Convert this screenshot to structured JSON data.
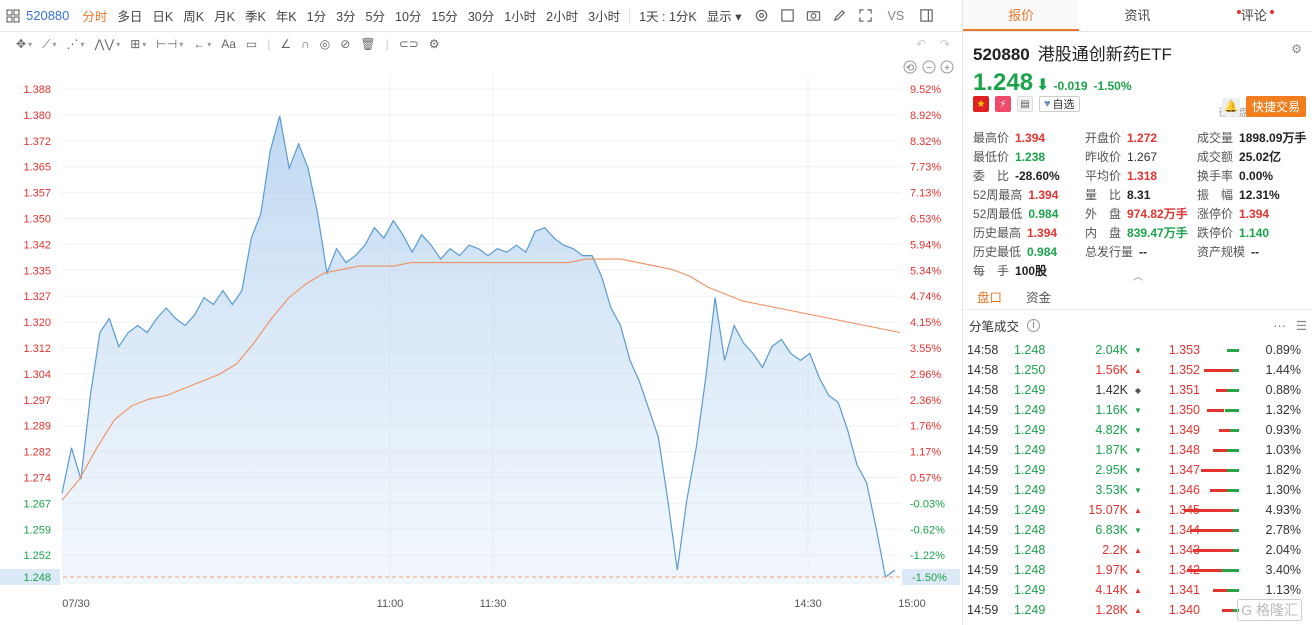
{
  "toolbar": {
    "code": "520880",
    "periods": [
      "分时",
      "多日",
      "日K",
      "周K",
      "月K",
      "季K",
      "年K",
      "1分",
      "3分",
      "5分",
      "10分",
      "15分",
      "30分",
      "1小时",
      "2小时",
      "3小时"
    ],
    "active_period": "分时",
    "day_select": "1天",
    "minute_select": "1分K",
    "display_label": "显示",
    "vs_label": "VS"
  },
  "drawbar": {
    "text_tool": "Aa"
  },
  "chart_data": {
    "type": "line",
    "price_ticks": [
      "1.388",
      "1.380",
      "1.372",
      "1.365",
      "1.357",
      "1.350",
      "1.342",
      "1.335",
      "1.327",
      "1.320",
      "1.312",
      "1.304",
      "1.297",
      "1.289",
      "1.282",
      "1.274",
      "1.267",
      "1.259",
      "1.252"
    ],
    "pct_ticks": [
      "9.52%",
      "8.92%",
      "8.32%",
      "7.73%",
      "7.13%",
      "6.53%",
      "5.94%",
      "5.34%",
      "4.74%",
      "4.15%",
      "3.55%",
      "2.96%",
      "2.36%",
      "1.76%",
      "1.17%",
      "0.57%",
      "-0.03%",
      "-0.62%",
      "-1.22%"
    ],
    "x_labels": [
      "07/30",
      "11:00",
      "11:30",
      "14:30",
      "15:00"
    ],
    "current_price_label": "1.248",
    "current_pct_label": "-1.50%",
    "prev_close": 1.267,
    "ylim": [
      1.246,
      1.392
    ],
    "series": [
      {
        "kind": "price",
        "color": "#5b9bd5",
        "values": [
          1.272,
          1.285,
          1.276,
          1.3,
          1.318,
          1.322,
          1.314,
          1.318,
          1.32,
          1.318,
          1.322,
          1.325,
          1.322,
          1.32,
          1.323,
          1.328,
          1.326,
          1.33,
          1.326,
          1.33,
          1.345,
          1.352,
          1.37,
          1.38,
          1.365,
          1.372,
          1.365,
          1.352,
          1.335,
          1.342,
          1.338,
          1.34,
          1.343,
          1.348,
          1.345,
          1.35,
          1.346,
          1.341,
          1.346,
          1.343,
          1.339,
          1.342,
          1.34,
          1.343,
          1.342,
          1.34,
          1.342,
          1.341,
          1.343,
          1.341,
          1.347,
          1.348,
          1.345,
          1.343,
          1.342,
          1.34,
          1.34,
          1.334,
          1.325,
          1.32,
          1.31,
          1.304,
          1.296,
          1.288,
          1.27,
          1.25,
          1.27,
          1.285,
          1.305,
          1.328,
          1.31,
          1.32,
          1.315,
          1.312,
          1.308,
          1.314,
          1.316,
          1.312,
          1.31,
          1.312,
          1.305,
          1.3,
          1.298,
          1.29,
          1.28,
          1.275,
          1.262,
          1.248,
          1.25
        ]
      },
      {
        "kind": "average",
        "color": "#f09060",
        "values": [
          1.27,
          1.276,
          1.285,
          1.293,
          1.297,
          1.299,
          1.3,
          1.302,
          1.304,
          1.306,
          1.309,
          1.315,
          1.322,
          1.328,
          1.332,
          1.335,
          1.336,
          1.337,
          1.337,
          1.337,
          1.338,
          1.338,
          1.338,
          1.338,
          1.338,
          1.338,
          1.338,
          1.338,
          1.338,
          1.338,
          1.339,
          1.339,
          1.339,
          1.338,
          1.337,
          1.336,
          1.334,
          1.331,
          1.329,
          1.327,
          1.326,
          1.325,
          1.324,
          1.323,
          1.322,
          1.321,
          1.32,
          1.319,
          1.318
        ]
      }
    ]
  },
  "tabs": {
    "quote": "报价",
    "news": "资讯",
    "comments": "评论"
  },
  "stock": {
    "code": "520880",
    "name": "港股通创新药ETF",
    "price": "1.248",
    "change": "-0.019",
    "change_pct": "-1.50%",
    "status": "已收盘 07/30 14:59",
    "fav_label": "自选",
    "trade_label": "快捷交易"
  },
  "stats": [
    [
      [
        "最高价",
        "1.394",
        "up"
      ],
      [
        "开盘价",
        "1.272",
        "up"
      ],
      [
        "成交量",
        "1898.09万手",
        "neutral"
      ]
    ],
    [
      [
        "最低价",
        "1.238",
        "down"
      ],
      [
        "昨收价",
        "1.267",
        "plain"
      ],
      [
        "成交额",
        "25.02亿",
        "neutral"
      ]
    ],
    [
      [
        "委　比",
        "-28.60%",
        "neutral"
      ],
      [
        "平均价",
        "1.318",
        "up"
      ],
      [
        "换手率",
        "0.00%",
        "neutral"
      ]
    ],
    [
      [
        "52周最高",
        "1.394",
        "up"
      ],
      [
        "量　比",
        "8.31",
        "neutral"
      ],
      [
        "振　幅",
        "12.31%",
        "neutral"
      ]
    ],
    [
      [
        "52周最低",
        "0.984",
        "down"
      ],
      [
        "外　盘",
        "974.82万手",
        "up"
      ],
      [
        "涨停价",
        "1.394",
        "up"
      ]
    ],
    [
      [
        "历史最高",
        "1.394",
        "up"
      ],
      [
        "内　盘",
        "839.47万手",
        "down"
      ],
      [
        "跌停价",
        "1.140",
        "down"
      ]
    ],
    [
      [
        "历史最低",
        "0.984",
        "down"
      ],
      [
        "总发行量",
        "--",
        "neutral"
      ],
      [
        "资产规模",
        "--",
        "neutral"
      ]
    ],
    [
      [
        "每　手",
        "100股",
        "neutral"
      ]
    ]
  ],
  "subtabs": {
    "pankou": "盘口",
    "capital": "资金"
  },
  "ticks_title": "分笔成交",
  "ticks": [
    {
      "time": "14:58",
      "price": "1.248",
      "vol": "2.04K",
      "dir": "down",
      "ref": "1.353",
      "pct": "0.89%",
      "g": 0.2,
      "r": 0.0
    },
    {
      "time": "14:58",
      "price": "1.250",
      "vol": "1.56K",
      "dir": "up",
      "ref": "1.352",
      "pct": "1.44%",
      "g": 0.1,
      "r": 0.5
    },
    {
      "time": "14:58",
      "price": "1.249",
      "vol": "1.42K",
      "dir": "flat",
      "ref": "1.351",
      "pct": "0.88%",
      "g": 0.2,
      "r": 0.2
    },
    {
      "time": "14:59",
      "price": "1.249",
      "vol": "1.16K",
      "dir": "down",
      "ref": "1.350",
      "pct": "1.32%",
      "g": 0.25,
      "r": 0.3
    },
    {
      "time": "14:59",
      "price": "1.249",
      "vol": "4.82K",
      "dir": "down",
      "ref": "1.349",
      "pct": "0.93%",
      "g": 0.15,
      "r": 0.2
    },
    {
      "time": "14:59",
      "price": "1.249",
      "vol": "1.87K",
      "dir": "down",
      "ref": "1.348",
      "pct": "1.03%",
      "g": 0.2,
      "r": 0.25
    },
    {
      "time": "14:59",
      "price": "1.249",
      "vol": "2.95K",
      "dir": "down",
      "ref": "1.347",
      "pct": "1.82%",
      "g": 0.2,
      "r": 0.45
    },
    {
      "time": "14:59",
      "price": "1.249",
      "vol": "3.53K",
      "dir": "down",
      "ref": "1.346",
      "pct": "1.30%",
      "g": 0.2,
      "r": 0.3
    },
    {
      "time": "14:59",
      "price": "1.249",
      "vol": "15.07K",
      "dir": "up",
      "ref": "1.345",
      "pct": "4.93%",
      "g": 0.1,
      "r": 0.85
    },
    {
      "time": "14:59",
      "price": "1.248",
      "vol": "6.83K",
      "dir": "down",
      "ref": "1.344",
      "pct": "2.78%",
      "g": 0.1,
      "r": 0.75
    },
    {
      "time": "14:59",
      "price": "1.248",
      "vol": "2.2K",
      "dir": "up",
      "ref": "1.343",
      "pct": "2.04%",
      "g": 0.1,
      "r": 0.7
    },
    {
      "time": "14:59",
      "price": "1.248",
      "vol": "1.97K",
      "dir": "up",
      "ref": "1.342",
      "pct": "3.40%",
      "g": 0.3,
      "r": 0.6
    },
    {
      "time": "14:59",
      "price": "1.249",
      "vol": "4.14K",
      "dir": "up",
      "ref": "1.341",
      "pct": "1.13%",
      "g": 0.2,
      "r": 0.25
    },
    {
      "time": "14:59",
      "price": "1.249",
      "vol": "1.28K",
      "dir": "up",
      "ref": "1.340",
      "pct": "",
      "g": 0.1,
      "r": 0.2
    }
  ],
  "watermark": "格隆汇"
}
